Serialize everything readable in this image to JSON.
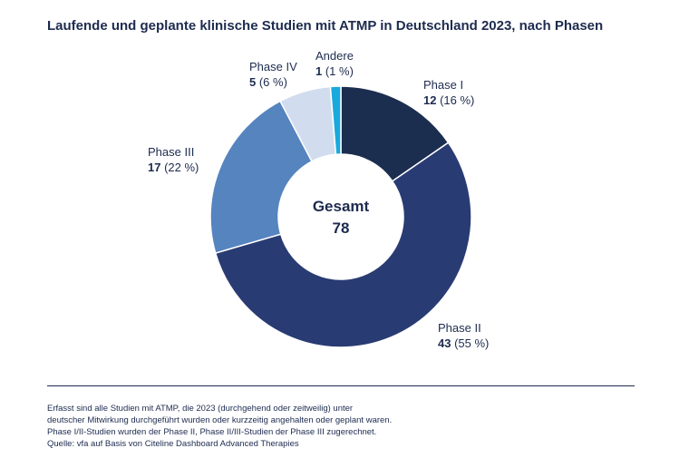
{
  "title": "Laufende und geplante klinische Studien mit ATMP in Deutschland 2023, nach Phasen",
  "chart_data": {
    "type": "pie",
    "variant": "donut",
    "center_label": "Gesamt",
    "center_value": "78",
    "slices": [
      {
        "label": "Phase I",
        "value": 12,
        "value_text": "12",
        "percent_text": "(16 %)",
        "color": "#1b2e50"
      },
      {
        "label": "Phase II",
        "value": 43,
        "value_text": "43",
        "percent_text": "(55 %)",
        "color": "#293b73"
      },
      {
        "label": "Phase III",
        "value": 17,
        "value_text": "17",
        "percent_text": "(22 %)",
        "color": "#5584bf"
      },
      {
        "label": "Phase IV",
        "value": 5,
        "value_text": "5",
        "percent_text": "(6 %)",
        "color": "#d2dcef"
      },
      {
        "label": "Andere",
        "value": 1,
        "value_text": "1",
        "percent_text": "(1 %)",
        "color": "#19a9dd"
      }
    ]
  },
  "footer": {
    "lines": [
      "Erfasst sind alle Studien mit ATMP, die 2023 (durchgehend oder zeitweilig) unter",
      "deutscher Mitwirkung durchgeführt wurden oder kurzzeitig angehalten oder geplant waren.",
      "Phase I/II-Studien wurden der Phase II, Phase II/III-Studien der Phase III zugerechnet.",
      "Quelle: vfa auf Basis von Citeline Dashboard Advanced Therapies"
    ]
  }
}
